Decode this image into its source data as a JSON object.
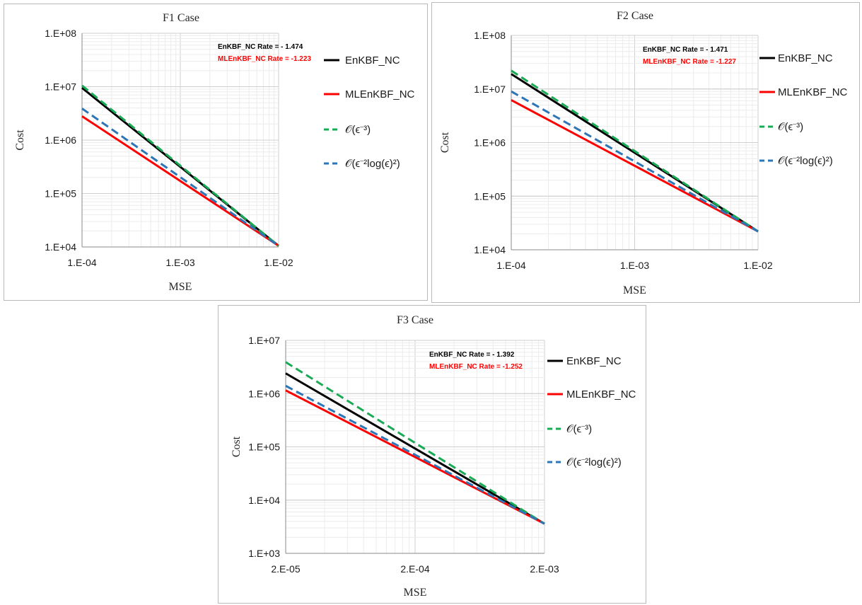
{
  "chart_data": [
    {
      "type": "line",
      "title": "F1 Case",
      "xlabel": "MSE",
      "ylabel": "Cost",
      "xscale": "log",
      "yscale": "log",
      "xlim": [
        0.0001,
        0.01
      ],
      "ylim": [
        10000,
        100000000
      ],
      "xticks": [
        "1.E-04",
        "1.E-03",
        "1.E-02"
      ],
      "yticks": [
        "1.E+04",
        "1.E+05",
        "1.E+06",
        "1.E+07",
        "1.E+08"
      ],
      "grid": true,
      "legend": "right",
      "annotations": [
        {
          "text": "EnKBF_NC Rate = - 1.474",
          "color": "#000000"
        },
        {
          "text": "MLEnKBF_NC Rate = -1.223",
          "color": "#ff0000"
        }
      ],
      "series": [
        {
          "name": "EnKBF_NC",
          "color": "#000000",
          "dash": "solid",
          "x": [
            0.0001,
            0.01
          ],
          "y": [
            9500000,
            10500
          ]
        },
        {
          "name": "MLEnKBF_NC",
          "color": "#ff0000",
          "dash": "solid",
          "x": [
            0.0001,
            0.01
          ],
          "y": [
            2800000,
            10500
          ]
        },
        {
          "name": "𝒪(ϵ⁻³)",
          "color": "#1aaa55",
          "dash": "dashed",
          "x": [
            0.0001,
            0.01
          ],
          "y": [
            10500000,
            10500
          ]
        },
        {
          "name": "𝒪(ϵ⁻²log(ϵ)²)",
          "color": "#2e75b6",
          "dash": "dashed",
          "x": [
            0.0001,
            0.01
          ],
          "y": [
            3900000,
            10500
          ]
        }
      ]
    },
    {
      "type": "line",
      "title": "F2 Case",
      "xlabel": "MSE",
      "ylabel": "Cost",
      "xscale": "log",
      "yscale": "log",
      "xlim": [
        0.0001,
        0.01
      ],
      "ylim": [
        10000,
        100000000
      ],
      "xticks": [
        "1.E-04",
        "1.E-03",
        "1.E-02"
      ],
      "yticks": [
        "1.E+04",
        "1.E+05",
        "1.E+06",
        "1.E+07",
        "1.E+08"
      ],
      "grid": true,
      "legend": "right",
      "annotations": [
        {
          "text": "EnKBF_NC Rate = - 1.471",
          "color": "#000000"
        },
        {
          "text": "MLEnKBF_NC Rate = -1.227",
          "color": "#ff0000"
        }
      ],
      "series": [
        {
          "name": "EnKBF_NC",
          "color": "#000000",
          "dash": "solid",
          "x": [
            0.0001,
            0.01
          ],
          "y": [
            19000000,
            22000
          ]
        },
        {
          "name": "MLEnKBF_NC",
          "color": "#ff0000",
          "dash": "solid",
          "x": [
            0.0001,
            0.01
          ],
          "y": [
            6200000,
            22000
          ]
        },
        {
          "name": "𝒪(ϵ⁻³)",
          "color": "#1aaa55",
          "dash": "dashed",
          "x": [
            0.0001,
            0.01
          ],
          "y": [
            22000000,
            22000
          ]
        },
        {
          "name": "𝒪(ϵ⁻²log(ϵ)²)",
          "color": "#2e75b6",
          "dash": "dashed",
          "x": [
            0.0001,
            0.01
          ],
          "y": [
            9000000,
            22000
          ]
        }
      ]
    },
    {
      "type": "line",
      "title": "F3 Case",
      "xlabel": "MSE",
      "ylabel": "Cost",
      "xscale": "log",
      "yscale": "log",
      "xlim": [
        2e-05,
        0.002
      ],
      "ylim": [
        1000,
        10000000
      ],
      "xticks": [
        "2.E-05",
        "2.E-04",
        "2.E-03"
      ],
      "yticks": [
        "1.E+03",
        "1.E+04",
        "1.E+05",
        "1.E+06",
        "1.E+07"
      ],
      "grid": true,
      "legend": "right",
      "annotations": [
        {
          "text": "EnKBF_NC Rate = - 1.392",
          "color": "#000000"
        },
        {
          "text": "MLEnKBF_NC Rate = -1.252",
          "color": "#ff0000"
        }
      ],
      "series": [
        {
          "name": "EnKBF_NC",
          "color": "#000000",
          "dash": "solid",
          "x": [
            2e-05,
            0.002
          ],
          "y": [
            2400000,
            3600
          ]
        },
        {
          "name": "MLEnKBF_NC",
          "color": "#ff0000",
          "dash": "solid",
          "x": [
            2e-05,
            0.002
          ],
          "y": [
            1150000,
            3600
          ]
        },
        {
          "name": "𝒪(ϵ⁻³)",
          "color": "#1aaa55",
          "dash": "dashed",
          "x": [
            2e-05,
            0.002
          ],
          "y": [
            3900000,
            3600
          ]
        },
        {
          "name": "𝒪(ϵ⁻²log(ϵ)²)",
          "color": "#2e75b6",
          "dash": "dashed",
          "x": [
            2e-05,
            0.002
          ],
          "y": [
            1400000,
            3600
          ]
        }
      ]
    }
  ]
}
